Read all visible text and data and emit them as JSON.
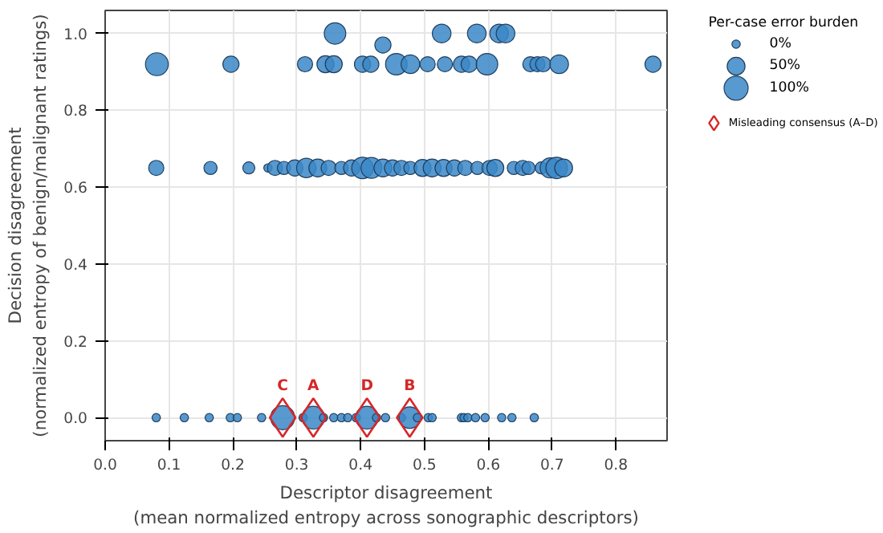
{
  "chart_data": {
    "type": "bubble",
    "xlabel": "Descriptor disagreement\n(mean normalized entropy across sonographic descriptors)",
    "ylabel": "Decision disagreement\n(normalized entropy of benign/malignant ratings)",
    "legend_title": "Per-case error burden",
    "xlim": [
      0,
      0.88
    ],
    "ylim": [
      -0.06,
      1.06
    ],
    "xticks": [
      {
        "value": 0,
        "label": "0.0"
      },
      0.1,
      0.2,
      0.3,
      0.4,
      0.5,
      0.6,
      0.7,
      0.8
    ],
    "yticks": [
      {
        "value": 0,
        "label": "0.0"
      },
      0.2,
      0.4,
      0.6,
      0.8,
      {
        "value": 1,
        "label": "1.0"
      }
    ],
    "grid": true,
    "legend": "right",
    "size_legend": [
      {
        "value": 0.12,
        "label": "0%"
      },
      {
        "value": 0.55,
        "label": "50%"
      },
      {
        "value": 1,
        "label": "100%"
      }
    ],
    "series": [
      {
        "color": "#3b87c7",
        "x": [
          0.36,
          0.527,
          0.582,
          0.617,
          0.627,
          0.435,
          0.081,
          0.197,
          0.313,
          0.345,
          0.358,
          0.403,
          0.416,
          0.456,
          0.478,
          0.505,
          0.532,
          0.558,
          0.57,
          0.598,
          0.666,
          0.677,
          0.686,
          0.711,
          0.858,
          0.08,
          0.165,
          0.225,
          0.255,
          0.266,
          0.28,
          0.297,
          0.315,
          0.333,
          0.35,
          0.37,
          0.386,
          0.403,
          0.417,
          0.435,
          0.45,
          0.464,
          0.478,
          0.497,
          0.512,
          0.53,
          0.547,
          0.564,
          0.583,
          0.602,
          0.611,
          0.64,
          0.654,
          0.663,
          0.683,
          0.697,
          0.707,
          0.718,
          0.08,
          0.124,
          0.163,
          0.196,
          0.207,
          0.245,
          0.278,
          0.31,
          0.326,
          0.342,
          0.358,
          0.37,
          0.38,
          0.393,
          0.41,
          0.425,
          0.439,
          0.464,
          0.477,
          0.489,
          0.506,
          0.512,
          0.558,
          0.562,
          0.568,
          0.58,
          0.595,
          0.621,
          0.637,
          0.672
        ],
        "values": [
          1,
          1,
          1,
          1,
          1,
          0.97,
          0.92,
          0.92,
          0.92,
          0.92,
          0.92,
          0.92,
          0.92,
          0.92,
          0.92,
          0.92,
          0.92,
          0.92,
          0.92,
          0.92,
          0.92,
          0.92,
          0.92,
          0.92,
          0.92,
          0.65,
          0.65,
          0.65,
          0.65,
          0.65,
          0.65,
          0.65,
          0.65,
          0.65,
          0.65,
          0.65,
          0.65,
          0.65,
          0.65,
          0.65,
          0.65,
          0.65,
          0.65,
          0.65,
          0.65,
          0.65,
          0.65,
          0.65,
          0.65,
          0.65,
          0.65,
          0.65,
          0.65,
          0.65,
          0.65,
          0.65,
          0.65,
          0.65,
          0,
          0,
          0,
          0,
          0,
          0,
          0,
          0,
          0,
          0,
          0,
          0,
          0,
          0,
          0,
          0,
          0,
          0,
          0,
          0,
          0,
          0,
          0,
          0,
          0,
          0,
          0,
          0,
          0,
          0
        ],
        "sizes": [
          0.8,
          0.6,
          0.6,
          0.6,
          0.6,
          0.45,
          0.9,
          0.45,
          0.4,
          0.5,
          0.5,
          0.45,
          0.45,
          0.8,
          0.6,
          0.4,
          0.4,
          0.45,
          0.45,
          0.8,
          0.4,
          0.4,
          0.4,
          0.6,
          0.45,
          0.4,
          0.3,
          0.25,
          0.12,
          0.4,
          0.3,
          0.45,
          0.65,
          0.55,
          0.4,
          0.3,
          0.45,
          0.8,
          0.75,
          0.55,
          0.45,
          0.4,
          0.3,
          0.5,
          0.55,
          0.5,
          0.45,
          0.4,
          0.3,
          0.4,
          0.5,
          0.3,
          0.4,
          0.3,
          0.25,
          0.7,
          0.8,
          0.55,
          0.12,
          0.12,
          0.12,
          0.12,
          0.12,
          0.12,
          1,
          0.12,
          0.9,
          0.12,
          0.12,
          0.12,
          0.12,
          0.12,
          0.9,
          0.12,
          0.12,
          0.12,
          0.8,
          0.12,
          0.12,
          0.12,
          0.12,
          0.12,
          0.12,
          0.12,
          0.12,
          0.12,
          0.12,
          0.12
        ]
      },
      {
        "type": "scatter",
        "name": "Misleading consensus (A–D)",
        "marker": "diamond",
        "color": "#d62728",
        "x": [
          0.278,
          0.326,
          0.41,
          0.477
        ],
        "values": [
          0,
          0,
          0,
          0
        ]
      }
    ],
    "annotations": [
      {
        "text": "C",
        "x": 0.278,
        "y": 0
      },
      {
        "text": "A",
        "x": 0.326,
        "y": 0
      },
      {
        "text": "D",
        "x": 0.41,
        "y": 0
      },
      {
        "text": "B",
        "x": 0.477,
        "y": 0
      }
    ]
  }
}
